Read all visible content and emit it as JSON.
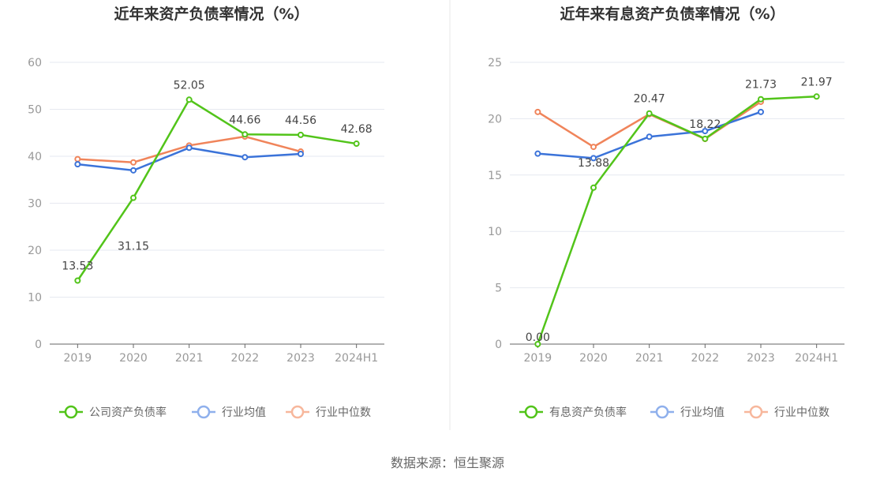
{
  "source": "数据来源：恒生聚源",
  "colors": {
    "company": "#52c41a",
    "avg": "#3b73d9",
    "median": "#f0845a"
  },
  "chart_data": [
    {
      "type": "line",
      "title": "近年来资产负债率情况（%）",
      "categories": [
        "2019",
        "2020",
        "2021",
        "2022",
        "2023",
        "2024H1"
      ],
      "ylim": [
        0,
        60
      ],
      "yticks": [
        "0",
        "10",
        "20",
        "30",
        "40",
        "50",
        "60"
      ],
      "grid": true,
      "legend_position": "bottom",
      "series": [
        {
          "name": "公司资产负债率",
          "color": "#52c41a",
          "values": [
            13.53,
            31.15,
            52.05,
            44.66,
            44.56,
            42.68
          ],
          "labels": [
            "13.53",
            "31.15",
            "52.05",
            "44.66",
            "44.56",
            "42.68"
          ]
        },
        {
          "name": "行业均值",
          "color": "#3b73d9",
          "values": [
            38.3,
            37.0,
            41.8,
            39.8,
            40.5,
            null
          ]
        },
        {
          "name": "行业中位数",
          "color": "#f0845a",
          "values": [
            39.4,
            38.7,
            42.3,
            44.2,
            41.0,
            null
          ]
        }
      ]
    },
    {
      "type": "line",
      "title": "近年来有息资产负债率情况（%）",
      "categories": [
        "2019",
        "2020",
        "2021",
        "2022",
        "2023",
        "2024H1"
      ],
      "ylim": [
        0,
        25
      ],
      "yticks": [
        "0",
        "5",
        "10",
        "15",
        "20",
        "25"
      ],
      "grid": true,
      "legend_position": "bottom",
      "series": [
        {
          "name": "有息资产负债率",
          "color": "#52c41a",
          "values": [
            0.0,
            13.88,
            20.47,
            18.22,
            21.73,
            21.97
          ],
          "labels": [
            "0.00",
            "13.88",
            "20.47",
            "18.22",
            "21.73",
            "21.97"
          ]
        },
        {
          "name": "行业均值",
          "color": "#3b73d9",
          "values": [
            16.9,
            16.5,
            18.4,
            18.9,
            20.6,
            null
          ]
        },
        {
          "name": "行业中位数",
          "color": "#f0845a",
          "values": [
            20.6,
            17.5,
            20.4,
            18.2,
            21.5,
            null
          ]
        }
      ]
    }
  ]
}
